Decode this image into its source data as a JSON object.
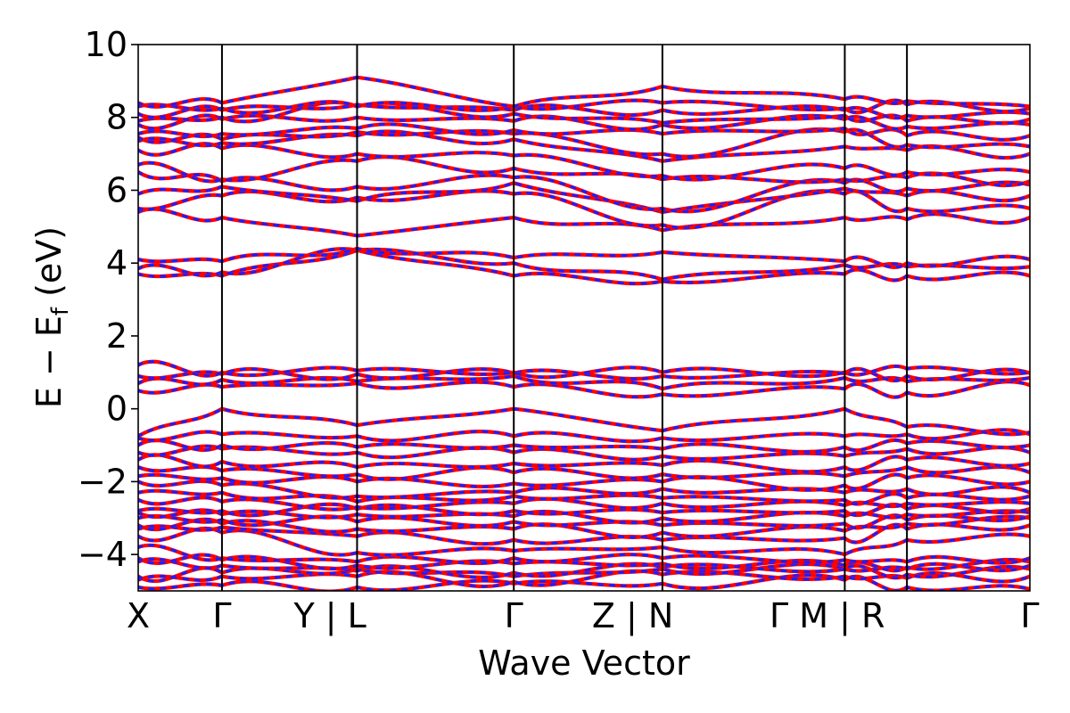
{
  "chart_data": {
    "type": "line",
    "title": "",
    "ylabel": "E − E",
    "ylabel_sub": "f",
    "ylabel_unit": " (eV)",
    "xlabel": "Wave Vector",
    "ylim": [
      -5,
      10
    ],
    "yticks": [
      -4,
      -2,
      0,
      2,
      4,
      6,
      8,
      10
    ],
    "ytick_labels": [
      "−4",
      "−2",
      "0",
      "2",
      "4",
      "6",
      "8",
      "10"
    ],
    "xlim": [
      0,
      6.6
    ],
    "kpoint_positions": [
      0,
      0.62,
      1.62,
      2.78,
      3.88,
      5.23,
      5.69,
      6.6
    ],
    "kpoint_labels": [
      "X",
      "Γ",
      "Y | L",
      "Γ",
      "Z | N",
      "Γ M | R",
      "",
      "Γ"
    ],
    "kpoint_label_offsets": [
      0,
      0,
      -0.2,
      0,
      -0.22,
      -0.13,
      0,
      0
    ],
    "segments": [
      [
        0,
        0.62
      ],
      [
        0.62,
        1.62
      ],
      [
        1.62,
        2.78
      ],
      [
        2.78,
        3.88
      ],
      [
        3.88,
        5.23
      ],
      [
        5.23,
        5.69
      ],
      [
        5.69,
        6.6
      ]
    ],
    "grid": false,
    "legend": "none",
    "series": [
      {
        "color": "#ff0000",
        "style": "solid",
        "width": 4.2
      },
      {
        "color": "#1f1fff",
        "style": "dotted",
        "width": 3.2
      }
    ],
    "bands": [
      [
        -4.9,
        -4.85,
        -4.9,
        -4.8,
        -4.8,
        -4.7,
        -4.9,
        -4.95
      ],
      [
        -4.7,
        -4.6,
        -4.6,
        -4.75,
        -4.55,
        -4.6,
        -4.65,
        -4.6
      ],
      [
        -4.6,
        -4.5,
        -4.4,
        -4.6,
        -4.4,
        -4.4,
        -4.55,
        -4.4
      ],
      [
        -4.2,
        -4.3,
        -4.45,
        -4.5,
        -4.35,
        -4.4,
        -4.4,
        -4.3
      ],
      [
        -4.1,
        -4.15,
        -4.3,
        -4.25,
        -4.25,
        -4.3,
        -4.35,
        -4.2
      ],
      [
        -3.8,
        -4.1,
        -4.2,
        -4.1,
        -4.1,
        -4.15,
        -4.2,
        -4.1
      ],
      [
        -3.5,
        -3.4,
        -3.95,
        -3.9,
        -3.8,
        -4.0,
        -3.6,
        -3.5
      ],
      [
        -3.3,
        -3.25,
        -3.5,
        -3.6,
        -3.6,
        -3.55,
        -3.3,
        -3.2
      ],
      [
        -3.2,
        -3.15,
        -3.3,
        -3.3,
        -3.4,
        -3.35,
        -3.15,
        -3.0
      ],
      [
        -3.0,
        -3.05,
        -3.1,
        -3.1,
        -3.2,
        -3.15,
        -3.05,
        -2.95
      ],
      [
        -2.85,
        -2.9,
        -2.9,
        -2.95,
        -3.0,
        -2.95,
        -2.9,
        -2.85
      ],
      [
        -2.8,
        -2.8,
        -2.75,
        -2.8,
        -2.85,
        -2.8,
        -2.75,
        -2.75
      ],
      [
        -2.5,
        -2.55,
        -2.7,
        -2.6,
        -2.6,
        -2.65,
        -2.6,
        -2.6
      ],
      [
        -2.3,
        -2.3,
        -2.55,
        -2.4,
        -2.45,
        -2.5,
        -2.45,
        -2.4
      ],
      [
        -2.0,
        -2.1,
        -2.4,
        -2.3,
        -2.2,
        -2.3,
        -2.2,
        -2.3
      ],
      [
        -1.85,
        -1.9,
        -2.0,
        -2.05,
        -2.0,
        -2.1,
        -1.9,
        -2.0
      ],
      [
        -1.6,
        -1.7,
        -1.8,
        -1.75,
        -1.8,
        -1.85,
        -1.6,
        -1.75
      ],
      [
        -1.4,
        -1.45,
        -1.6,
        -1.5,
        -1.55,
        -1.6,
        -1.4,
        -1.5
      ],
      [
        -1.2,
        -1.1,
        -1.2,
        -1.2,
        -1.3,
        -1.3,
        -1.1,
        -1.2
      ],
      [
        -1.0,
        -1.0,
        -1.05,
        -1.0,
        -1.1,
        -1.05,
        -0.95,
        -1.0
      ],
      [
        -0.8,
        -0.7,
        -0.75,
        -0.75,
        -0.8,
        -0.75,
        -0.7,
        -0.7
      ],
      [
        -0.75,
        0.0,
        -0.45,
        0.0,
        -0.6,
        0.0,
        -0.5,
        -0.65
      ],
      [
        0.5,
        0.6,
        0.7,
        0.6,
        0.4,
        0.55,
        0.45,
        0.65
      ],
      [
        0.7,
        0.8,
        0.75,
        0.9,
        0.55,
        0.85,
        0.75,
        0.85
      ],
      [
        0.9,
        0.95,
        0.95,
        0.98,
        0.9,
        0.97,
        0.9,
        0.98
      ],
      [
        1.2,
        1.0,
        1.05,
        1.0,
        1.0,
        1.0,
        1.1,
        1.0
      ],
      [
        3.7,
        3.65,
        4.35,
        3.65,
        3.5,
        3.7,
        3.65,
        3.65
      ],
      [
        3.85,
        3.75,
        4.35,
        4.0,
        3.55,
        3.95,
        3.9,
        3.9
      ],
      [
        4.1,
        4.05,
        4.4,
        4.15,
        4.3,
        4.05,
        4.0,
        4.1
      ],
      [
        5.4,
        5.25,
        4.75,
        5.25,
        4.9,
        5.25,
        5.2,
        5.25
      ],
      [
        5.5,
        5.85,
        5.8,
        5.9,
        5.05,
        5.9,
        5.5,
        5.5
      ],
      [
        5.9,
        6.1,
        5.7,
        6.2,
        5.4,
        6.05,
        5.85,
        5.85
      ],
      [
        6.5,
        6.25,
        6.1,
        6.35,
        5.5,
        6.2,
        6.05,
        6.15
      ],
      [
        6.7,
        6.3,
        6.8,
        6.6,
        6.3,
        6.3,
        6.35,
        6.25
      ],
      [
        7.1,
        7.15,
        7.0,
        6.95,
        6.4,
        6.6,
        6.5,
        6.5
      ],
      [
        7.35,
        7.3,
        7.5,
        7.4,
        6.8,
        7.2,
        7.1,
        7.0
      ],
      [
        7.45,
        7.4,
        7.6,
        7.55,
        7.0,
        7.6,
        7.25,
        7.2
      ],
      [
        7.55,
        7.55,
        7.7,
        7.65,
        7.55,
        7.7,
        7.5,
        7.5
      ],
      [
        7.8,
        7.95,
        8.0,
        7.9,
        7.8,
        7.95,
        7.75,
        7.8
      ],
      [
        7.9,
        8.0,
        8.3,
        8.1,
        7.85,
        8.05,
        7.9,
        7.95
      ],
      [
        8.1,
        8.2,
        8.35,
        8.2,
        8.2,
        8.2,
        8.05,
        8.1
      ],
      [
        8.3,
        8.25,
        8.3,
        8.3,
        8.4,
        8.25,
        8.35,
        8.25
      ],
      [
        8.4,
        8.4,
        9.1,
        8.3,
        8.85,
        8.5,
        8.45,
        8.3
      ]
    ]
  }
}
